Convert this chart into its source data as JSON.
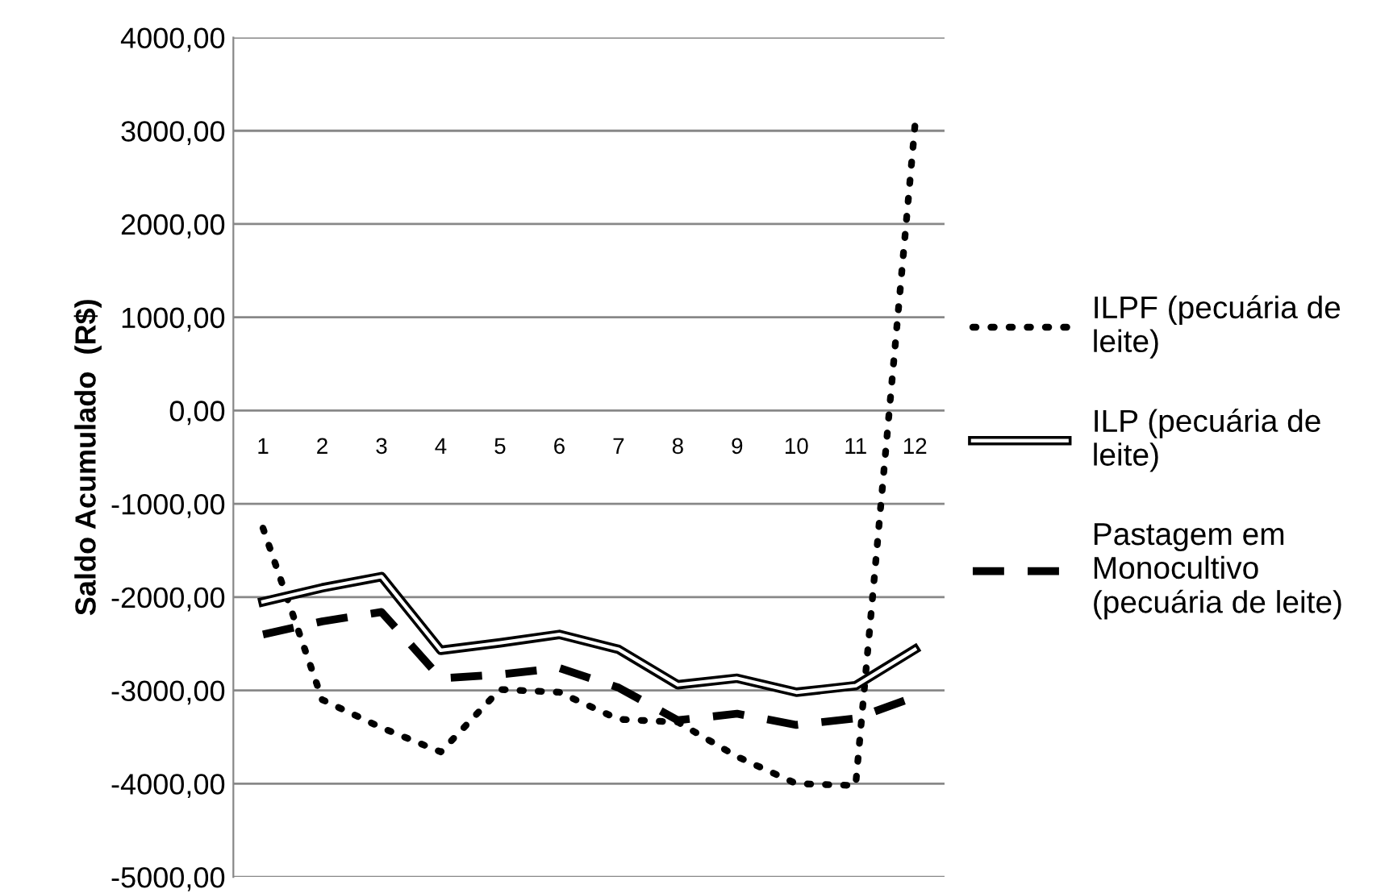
{
  "chart_data": {
    "type": "line",
    "ylabel": "Saldo Acumulado  (R$)",
    "categories": [
      "1",
      "2",
      "3",
      "4",
      "5",
      "6",
      "7",
      "8",
      "9",
      "10",
      "11",
      "12"
    ],
    "series": [
      {
        "name": "ILPF (pecuária de leite)",
        "color": "#000000",
        "line_style": "dotted",
        "values": [
          -1260,
          -3100,
          -3400,
          -3660,
          -2990,
          -3020,
          -3310,
          -3340,
          -3710,
          -4000,
          -4020,
          3050
        ]
      },
      {
        "name": "ILP (pecuária de leite)",
        "color": "#000000",
        "line_style": "solid",
        "values": [
          -2050,
          -1900,
          -1780,
          -2570,
          -2490,
          -2400,
          -2560,
          -2940,
          -2870,
          -3020,
          -2950,
          -2560
        ]
      },
      {
        "name": "Pastagem em Monocultivo (pecuária de leite)",
        "color": "#000000",
        "line_style": "dashed",
        "values": [
          -2400,
          -2260,
          -2160,
          -2870,
          -2830,
          -2760,
          -2970,
          -3320,
          -3250,
          -3370,
          -3300,
          -3070
        ]
      }
    ],
    "ylim": [
      -5000,
      4000
    ],
    "yticks": [
      {
        "value": -5000,
        "label": "-5000,00"
      },
      {
        "value": -4000,
        "label": "-4000,00"
      },
      {
        "value": -3000,
        "label": "-3000,00"
      },
      {
        "value": -2000,
        "label": "-2000,00"
      },
      {
        "value": -1000,
        "label": "-1000,00"
      },
      {
        "value": 0,
        "label": "0,00"
      },
      {
        "value": 1000,
        "label": "1000,00"
      },
      {
        "value": 2000,
        "label": "2000,00"
      },
      {
        "value": 3000,
        "label": "3000,00"
      },
      {
        "value": 4000,
        "label": "4000,00"
      }
    ],
    "grid": "y",
    "legend": "right",
    "marker": "none"
  }
}
